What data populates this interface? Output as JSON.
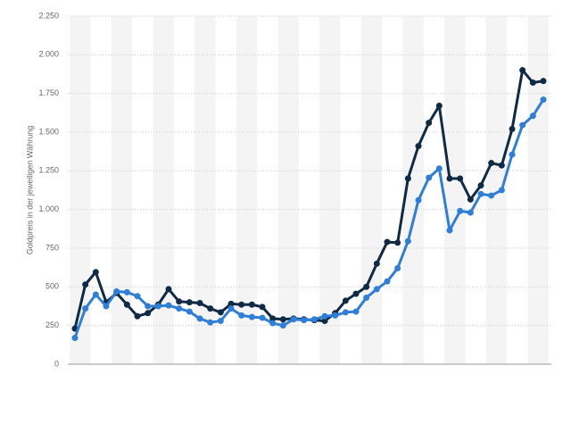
{
  "chart_data": {
    "type": "line",
    "y_label": "Goldpreis in der jeweiligen Währung",
    "categories": [
      null,
      null,
      null,
      null,
      null,
      null,
      null,
      null,
      null,
      null,
      null,
      null,
      null,
      null,
      null,
      null,
      null,
      null,
      null,
      null,
      null,
      null,
      null,
      null,
      null,
      null,
      null,
      null,
      null,
      null,
      null,
      null,
      null,
      null,
      null,
      null,
      null,
      null,
      null,
      null,
      null,
      null,
      null,
      null,
      null,
      null
    ],
    "series": [
      {
        "color": "#0f2a45",
        "values": [
          230,
          515,
          595,
          400,
          460,
          385,
          310,
          330,
          385,
          485,
          405,
          400,
          395,
          360,
          335,
          390,
          385,
          385,
          370,
          295,
          290,
          295,
          290,
          285,
          280,
          330,
          410,
          455,
          500,
          650,
          790,
          785,
          1200,
          1410,
          1560,
          1670,
          1200,
          1200,
          1065,
          1155,
          1300,
          1285,
          1520,
          1900,
          1820,
          1830
        ]
      },
      {
        "color": "#2f7ed8",
        "values": [
          170,
          360,
          450,
          375,
          470,
          465,
          440,
          375,
          375,
          380,
          360,
          340,
          295,
          270,
          280,
          360,
          315,
          305,
          300,
          265,
          250,
          290,
          285,
          290,
          310,
          315,
          335,
          340,
          430,
          485,
          535,
          620,
          795,
          1060,
          1205,
          1265,
          865,
          990,
          980,
          1100,
          1090,
          1125,
          1355,
          1545,
          1605,
          1710
        ]
      }
    ],
    "ylim": [
      0,
      2250
    ],
    "yticks": [
      0,
      250,
      500,
      750,
      {
        "value": 1000,
        "label": "1.000"
      },
      {
        "value": 1250,
        "label": "1.250"
      },
      {
        "value": 1500,
        "label": "1.500"
      },
      {
        "value": 1750,
        "label": "1.750"
      },
      {
        "value": 2000,
        "label": "2.000"
      },
      {
        "value": 2250,
        "label": "2.250"
      }
    ],
    "grid": true
  }
}
